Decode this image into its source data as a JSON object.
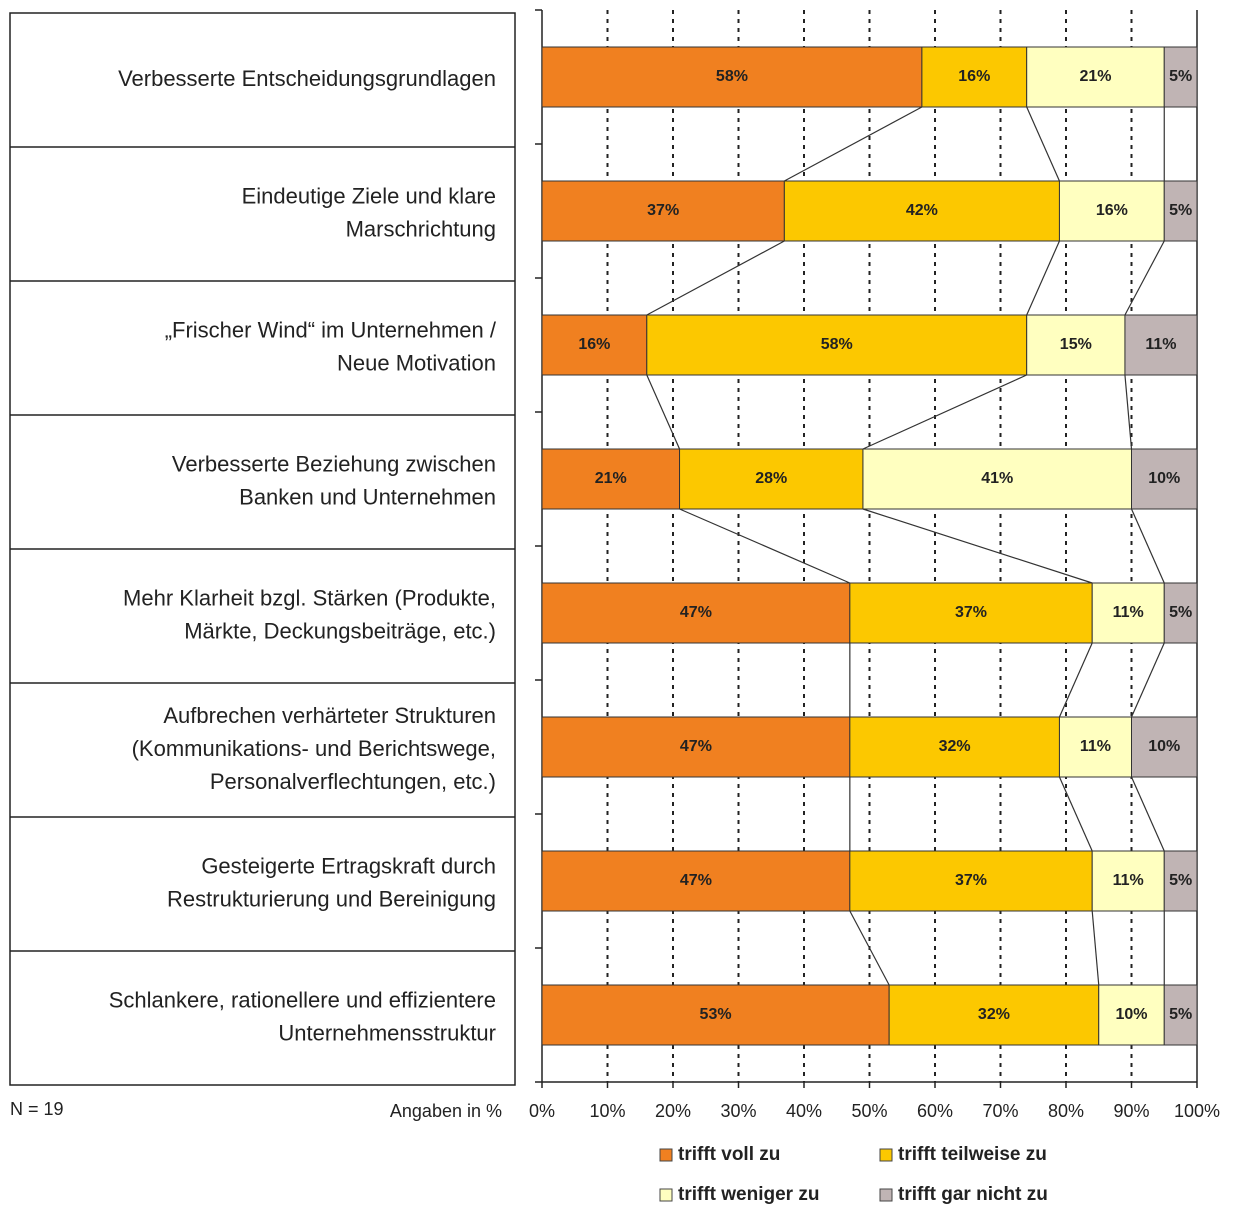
{
  "chart_data": {
    "type": "stacked_barh",
    "categories": [
      [
        "Verbesserte Entscheidungsgrundlagen"
      ],
      [
        "Eindeutige Ziele und klare",
        "Marschrichtung"
      ],
      [
        "„Frischer Wind“ im Unternehmen /",
        "Neue Motivation"
      ],
      [
        "Verbesserte Beziehung zwischen",
        "Banken und Unternehmen"
      ],
      [
        "Mehr Klarheit bzgl. Stärken (Produkte,",
        "Märkte, Deckungsbeiträge, etc.)"
      ],
      [
        "Aufbrechen verhärteter Strukturen",
        "(Kommunikations- und Berichtswege,",
        "Personalverflechtungen, etc.)"
      ],
      [
        "Gesteigerte Ertragskraft durch",
        "Restrukturierung und Bereinigung"
      ],
      [
        "Schlankere, rationellere und effizientere",
        "Unternehmensstruktur"
      ]
    ],
    "series": [
      {
        "name": "trifft voll zu",
        "color": "#f08020",
        "values": [
          58,
          37,
          16,
          21,
          47,
          47,
          47,
          53
        ],
        "value_labels": [
          "58%",
          "37%",
          "16%",
          "21%",
          "47%",
          "47%",
          "47%",
          "53%"
        ]
      },
      {
        "name": "trifft teilweise zu",
        "color": "#fcc800",
        "values": [
          16,
          42,
          58,
          28,
          37,
          32,
          37,
          32
        ],
        "value_labels": [
          "16%",
          "42%",
          "58%",
          "28%",
          "37%",
          "32%",
          "37%",
          "32%"
        ]
      },
      {
        "name": "trifft weniger zu",
        "color": "#ffffc0",
        "values": [
          21,
          16,
          15,
          41,
          11,
          11,
          11,
          10
        ],
        "value_labels": [
          "21%",
          "16%",
          "15%",
          "41%",
          "11%",
          "11%",
          "11%",
          "10%"
        ]
      },
      {
        "name": "trifft gar nicht zu",
        "color": "#c0b4b4",
        "values": [
          5,
          5,
          11,
          10,
          5,
          10,
          5,
          5
        ],
        "value_labels": [
          "5%",
          "5%",
          "11%",
          "10%",
          "5%",
          "10%",
          "5%",
          "5%"
        ]
      }
    ],
    "xlim": [
      0,
      100
    ],
    "xticks": [
      {
        "value": 0,
        "label": "0%"
      },
      {
        "value": 10,
        "label": "10%"
      },
      {
        "value": 20,
        "label": "20%"
      },
      {
        "value": 30,
        "label": "30%"
      },
      {
        "value": 40,
        "label": "40%"
      },
      {
        "value": 50,
        "label": "50%"
      },
      {
        "value": 60,
        "label": "60%"
      },
      {
        "value": 70,
        "label": "70%"
      },
      {
        "value": 80,
        "label": "80%"
      },
      {
        "value": 90,
        "label": "90%"
      },
      {
        "value": 100,
        "label": "100%"
      }
    ],
    "x_label": "Angaben in %",
    "note": "N = 19",
    "grid": true
  }
}
